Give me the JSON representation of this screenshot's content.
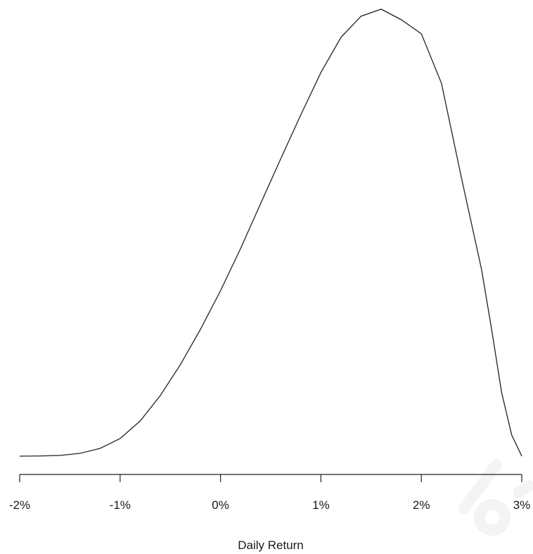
{
  "chart_data": {
    "type": "line",
    "title": "",
    "xlabel": "Daily Return",
    "ylabel": "",
    "xlim": [
      -2,
      3
    ],
    "ylim": [
      0,
      1
    ],
    "x_tick_values": [
      -2,
      -1,
      0,
      1,
      2,
      3
    ],
    "x_tick_labels": [
      "-2%",
      "-1%",
      "0%",
      "1%",
      "2%",
      "3%"
    ],
    "y_axis_visible": false,
    "grid": false,
    "line_color": "#222222",
    "series": [
      {
        "x": [
          -2.0,
          -1.8,
          -1.6,
          -1.4,
          -1.2,
          -1.0,
          -0.8,
          -0.6,
          -0.4,
          -0.2,
          0.0,
          0.2,
          0.4,
          0.6,
          0.8,
          1.0,
          1.2,
          1.4,
          1.6,
          1.8,
          2.0,
          2.2,
          2.4,
          2.6,
          2.7,
          2.8,
          2.9,
          3.0
        ],
        "y": [
          0.0,
          0.0004,
          0.0016,
          0.0063,
          0.0173,
          0.0394,
          0.0787,
          0.1354,
          0.2047,
          0.2835,
          0.3701,
          0.4646,
          0.5654,
          0.6654,
          0.7638,
          0.8583,
          0.937,
          0.9843,
          1.0,
          0.9764,
          0.9449,
          0.8346,
          0.622,
          0.4173,
          0.2835,
          0.1417,
          0.0472,
          0.0
        ]
      }
    ]
  }
}
